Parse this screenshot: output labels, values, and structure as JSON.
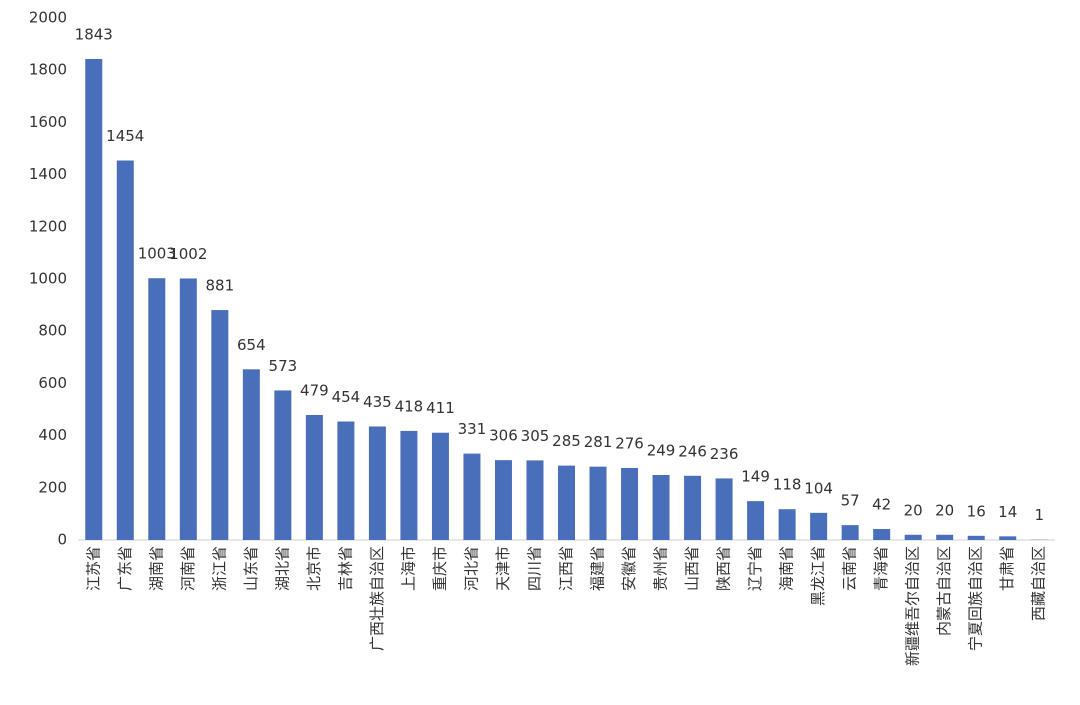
{
  "chart_data": {
    "type": "bar",
    "categories": [
      "江苏省",
      "广东省",
      "湖南省",
      "河南省",
      "浙江省",
      "山东省",
      "湖北省",
      "北京市",
      "吉林省",
      "广西壮族自治区",
      "上海市",
      "重庆市",
      "河北省",
      "天津市",
      "四川省",
      "江西省",
      "福建省",
      "安徽省",
      "贵州省",
      "山西省",
      "陕西省",
      "辽宁省",
      "海南省",
      "黑龙江省",
      "云南省",
      "青海省",
      "新疆维吾尔自治区",
      "内蒙古自治区",
      "宁夏回族自治区",
      "甘肃省",
      "西藏自治区"
    ],
    "values": [
      1843,
      1454,
      1003,
      1002,
      881,
      654,
      573,
      479,
      454,
      435,
      418,
      411,
      331,
      306,
      305,
      285,
      281,
      276,
      249,
      246,
      236,
      149,
      118,
      104,
      57,
      42,
      20,
      20,
      16,
      14,
      1
    ],
    "color": "#4a6fba",
    "ylim": [
      0,
      2000
    ],
    "yticks": [
      0,
      200,
      400,
      600,
      800,
      1000,
      1200,
      1400,
      1600,
      1800,
      2000
    ],
    "grid": false
  }
}
